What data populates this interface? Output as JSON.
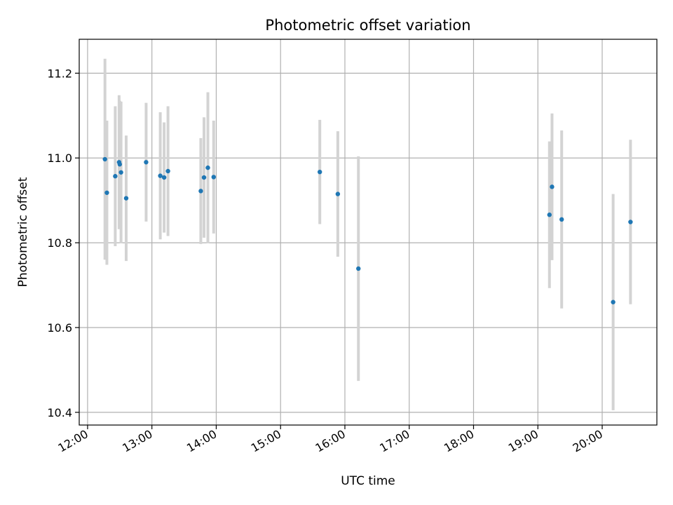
{
  "chart_data": {
    "type": "scatter",
    "title": "Photometric offset variation",
    "xlabel": "UTC time",
    "ylabel": "Photometric offset",
    "x_unit": "hours UTC",
    "xlim": [
      11.87,
      20.85
    ],
    "ylim": [
      10.37,
      11.28
    ],
    "grid": true,
    "marker_color": "#1f77b4",
    "errorbar_color": "#d3d3d3",
    "x_ticks": [
      {
        "value": 12,
        "label": "12:00"
      },
      {
        "value": 13,
        "label": "13:00"
      },
      {
        "value": 14,
        "label": "14:00"
      },
      {
        "value": 15,
        "label": "15:00"
      },
      {
        "value": 16,
        "label": "16:00"
      },
      {
        "value": 17,
        "label": "17:00"
      },
      {
        "value": 18,
        "label": "18:00"
      },
      {
        "value": 19,
        "label": "19:00"
      },
      {
        "value": 20,
        "label": "20:00"
      }
    ],
    "y_ticks": [
      {
        "value": 10.4,
        "label": "10.4"
      },
      {
        "value": 10.6,
        "label": "10.6"
      },
      {
        "value": 10.8,
        "label": "10.8"
      },
      {
        "value": 11.0,
        "label": "11.0"
      },
      {
        "value": 11.2,
        "label": "11.2"
      }
    ],
    "points": [
      {
        "x": 12.27,
        "y": 10.997,
        "err": 0.237
      },
      {
        "x": 12.3,
        "y": 10.918,
        "err": 0.17
      },
      {
        "x": 12.43,
        "y": 10.957,
        "err": 0.165
      },
      {
        "x": 12.49,
        "y": 10.99,
        "err": 0.158
      },
      {
        "x": 12.5,
        "y": 10.985,
        "err": 0.15
      },
      {
        "x": 12.52,
        "y": 10.966,
        "err": 0.167
      },
      {
        "x": 12.6,
        "y": 10.905,
        "err": 0.148
      },
      {
        "x": 12.91,
        "y": 10.99,
        "err": 0.14
      },
      {
        "x": 13.13,
        "y": 10.958,
        "err": 0.15
      },
      {
        "x": 13.19,
        "y": 10.954,
        "err": 0.13
      },
      {
        "x": 13.25,
        "y": 10.969,
        "err": 0.153
      },
      {
        "x": 13.76,
        "y": 10.922,
        "err": 0.125
      },
      {
        "x": 13.81,
        "y": 10.954,
        "err": 0.142
      },
      {
        "x": 13.87,
        "y": 10.977,
        "err": 0.178
      },
      {
        "x": 13.96,
        "y": 10.955,
        "err": 0.133
      },
      {
        "x": 15.61,
        "y": 10.967,
        "err": 0.123
      },
      {
        "x": 15.89,
        "y": 10.915,
        "err": 0.148
      },
      {
        "x": 16.21,
        "y": 10.739,
        "err": 0.265
      },
      {
        "x": 19.18,
        "y": 10.866,
        "err": 0.173
      },
      {
        "x": 19.22,
        "y": 10.932,
        "err": 0.173
      },
      {
        "x": 19.37,
        "y": 10.855,
        "err": 0.21
      },
      {
        "x": 20.17,
        "y": 10.66,
        "err": 0.255
      },
      {
        "x": 20.44,
        "y": 10.849,
        "err": 0.194
      }
    ]
  }
}
